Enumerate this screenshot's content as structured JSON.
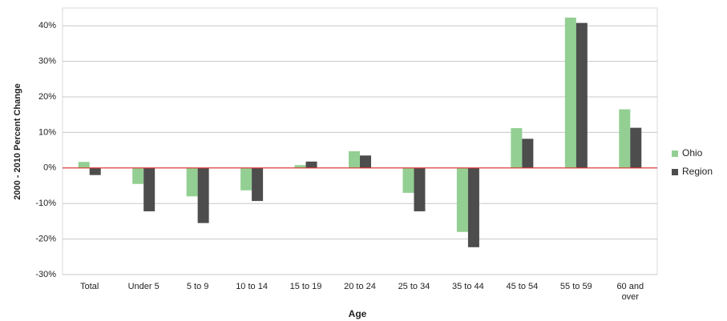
{
  "chart_data": {
    "type": "bar",
    "x_label": "Age",
    "y_label": "2000 - 2010 Percent Change",
    "categories": [
      "Total",
      "Under 5",
      "5 to 9",
      "10 to 14",
      "15 to 19",
      "20 to 24",
      "25 to 34",
      "35 to 44",
      "45 to 54",
      "55 to 59",
      "60 and over"
    ],
    "series": [
      {
        "name": "Ohio",
        "color": "#93cf93",
        "values": [
          1.7,
          -4.5,
          -8,
          -6.3,
          0.8,
          4.7,
          -7,
          -18,
          11.2,
          42.3,
          16.5
        ]
      },
      {
        "name": "Region",
        "color": "#4d4d4d",
        "values": [
          -2,
          -12.2,
          -15.5,
          -9.3,
          1.8,
          3.5,
          -12.2,
          -22.3,
          8.2,
          40.8,
          11.3
        ]
      }
    ],
    "ylim": [
      -30,
      45
    ],
    "yticks": [
      {
        "value": -30,
        "label": "-30%"
      },
      {
        "value": -20,
        "label": "-20%"
      },
      {
        "value": -10,
        "label": "-10%"
      },
      {
        "value": 0,
        "label": "0%"
      },
      {
        "value": 10,
        "label": "10%"
      },
      {
        "value": 20,
        "label": "20%"
      },
      {
        "value": 30,
        "label": "30%"
      },
      {
        "value": 40,
        "label": "40%"
      }
    ],
    "grid": true,
    "zero_line_color": "#e03030",
    "legend": "right"
  }
}
